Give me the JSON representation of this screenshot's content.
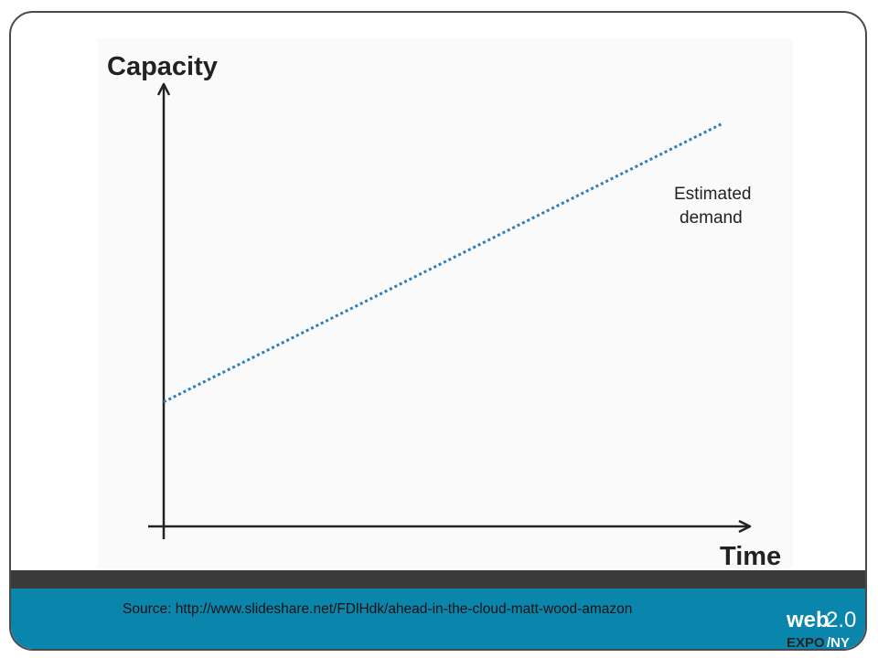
{
  "chart_data": {
    "type": "line",
    "title": "",
    "ylabel": "Capacity",
    "xlabel": "Time",
    "xlim": [
      0,
      1
    ],
    "ylim": [
      0,
      1
    ],
    "grid": false,
    "legend": "none",
    "series": [
      {
        "name": "Estimated demand",
        "style": "dotted",
        "color": "#2a7fc0",
        "x": [
          0,
          1
        ],
        "y": [
          0.3,
          0.97
        ]
      }
    ],
    "annotations": [
      {
        "text_line1": "Estimated",
        "text_line2": "demand"
      }
    ]
  },
  "footer": {
    "source": "Source: http://www.slideshare.net/FDlHdk/ahead-in-the-cloud-matt-wood-amazon"
  },
  "logo": {
    "line1_a": "web",
    "line1_b": "2.0",
    "line2_a": "EXPO",
    "line2_b": "/NY"
  },
  "colors": {
    "footer_band": "#0a86ad",
    "footer_dark": "#3a3a3a",
    "axis": "#222222",
    "series": "#2a7fc0"
  }
}
